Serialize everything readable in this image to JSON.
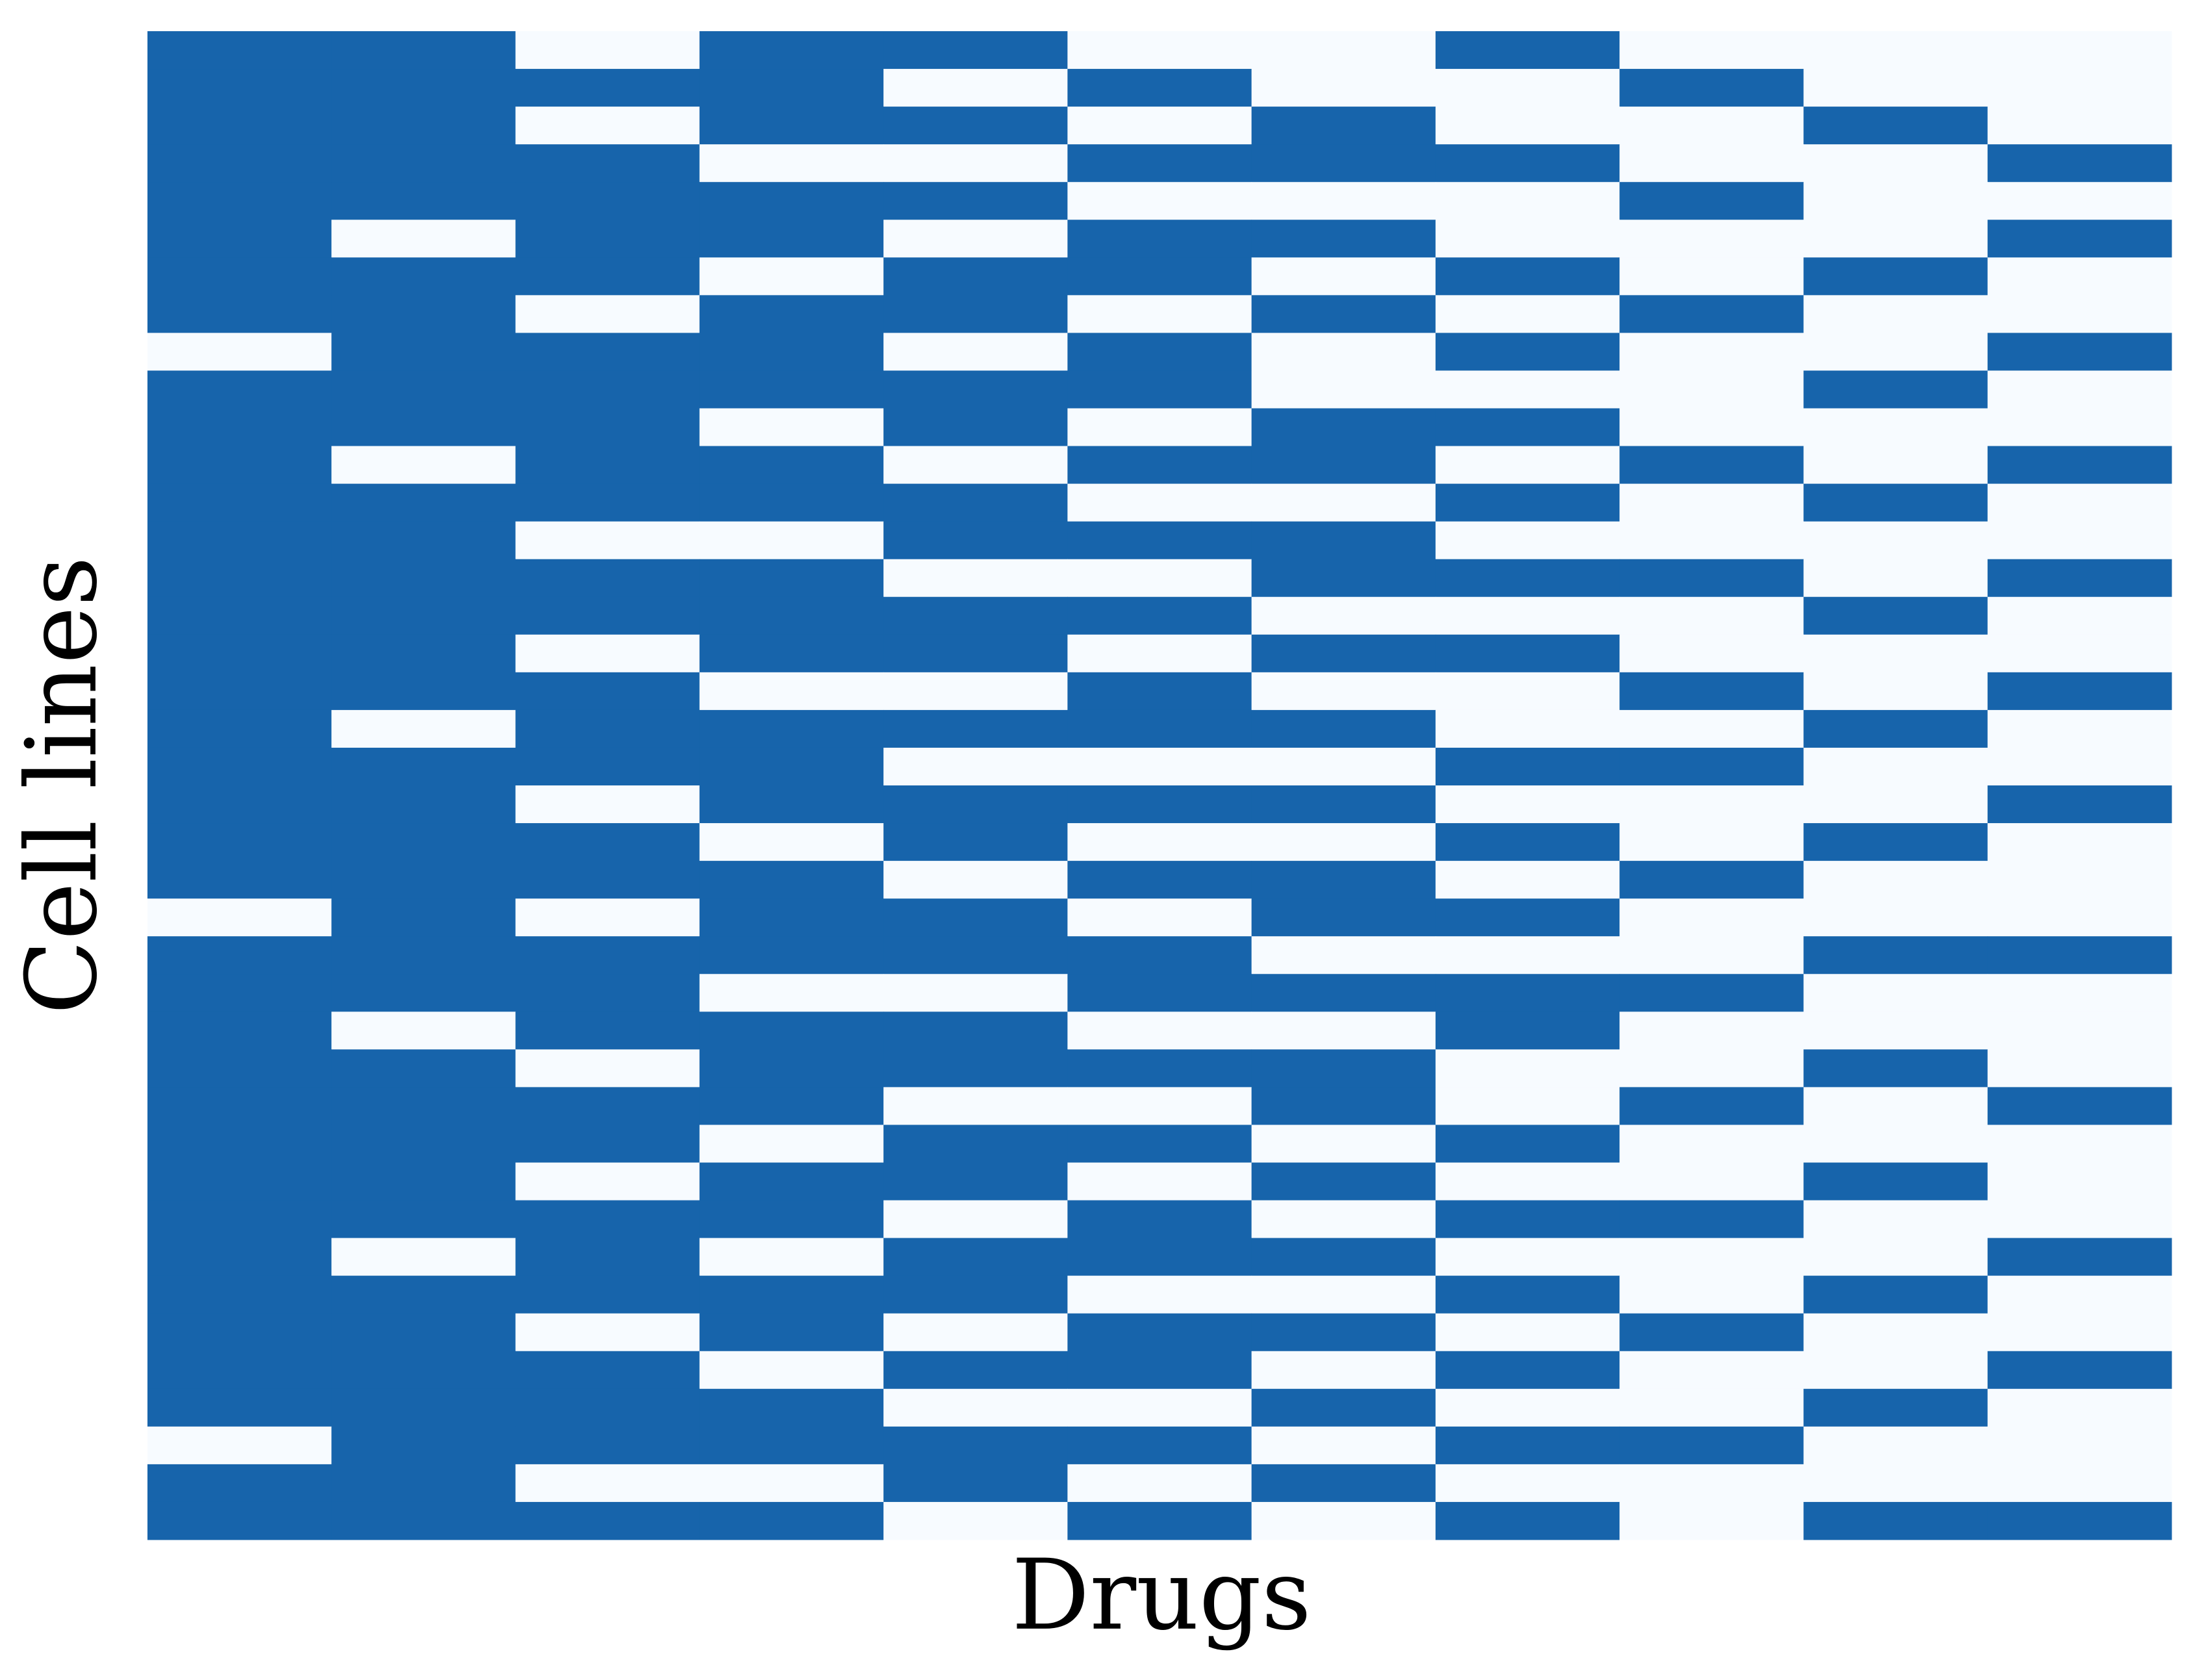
{
  "chart_data": {
    "type": "heatmap",
    "xlabel": "Drugs",
    "ylabel": "Cell lines",
    "colors": [
      "#f7fbff",
      "#1764ab"
    ],
    "vlim": [
      0,
      1
    ],
    "values": [
      [
        1,
        1,
        0,
        1,
        1,
        0,
        0,
        1,
        0,
        0,
        0
      ],
      [
        1,
        1,
        1,
        1,
        0,
        1,
        0,
        0,
        1,
        0,
        0
      ],
      [
        1,
        1,
        0,
        1,
        1,
        0,
        1,
        0,
        0,
        1,
        0
      ],
      [
        1,
        1,
        1,
        0,
        0,
        1,
        1,
        1,
        0,
        0,
        1
      ],
      [
        1,
        1,
        1,
        1,
        1,
        0,
        0,
        0,
        1,
        0,
        0
      ],
      [
        1,
        0,
        1,
        1,
        0,
        1,
        1,
        0,
        0,
        0,
        1
      ],
      [
        1,
        1,
        1,
        0,
        1,
        1,
        0,
        1,
        0,
        1,
        0
      ],
      [
        1,
        1,
        0,
        1,
        1,
        0,
        1,
        0,
        1,
        0,
        0
      ],
      [
        0,
        1,
        1,
        1,
        0,
        1,
        0,
        1,
        0,
        0,
        1
      ],
      [
        1,
        1,
        1,
        1,
        1,
        1,
        0,
        0,
        0,
        1,
        0
      ],
      [
        1,
        1,
        1,
        0,
        1,
        0,
        1,
        1,
        0,
        0,
        0
      ],
      [
        1,
        0,
        1,
        1,
        0,
        1,
        1,
        0,
        1,
        0,
        1
      ],
      [
        1,
        1,
        1,
        1,
        1,
        0,
        0,
        1,
        0,
        1,
        0
      ],
      [
        1,
        1,
        0,
        0,
        1,
        1,
        1,
        0,
        0,
        0,
        0
      ],
      [
        1,
        1,
        1,
        1,
        0,
        0,
        1,
        1,
        1,
        0,
        1
      ],
      [
        1,
        1,
        1,
        1,
        1,
        1,
        0,
        0,
        0,
        1,
        0
      ],
      [
        1,
        1,
        0,
        1,
        1,
        0,
        1,
        1,
        0,
        0,
        0
      ],
      [
        1,
        1,
        1,
        0,
        0,
        1,
        0,
        0,
        1,
        0,
        1
      ],
      [
        1,
        0,
        1,
        1,
        1,
        1,
        1,
        0,
        0,
        1,
        0
      ],
      [
        1,
        1,
        1,
        1,
        0,
        0,
        0,
        1,
        1,
        0,
        0
      ],
      [
        1,
        1,
        0,
        1,
        1,
        1,
        1,
        0,
        0,
        0,
        1
      ],
      [
        1,
        1,
        1,
        0,
        1,
        0,
        0,
        1,
        0,
        1,
        0
      ],
      [
        1,
        1,
        1,
        1,
        0,
        1,
        1,
        0,
        1,
        0,
        0
      ],
      [
        0,
        1,
        0,
        1,
        1,
        0,
        1,
        1,
        0,
        0,
        0
      ],
      [
        1,
        1,
        1,
        1,
        1,
        1,
        0,
        0,
        0,
        1,
        1
      ],
      [
        1,
        1,
        1,
        0,
        0,
        1,
        1,
        1,
        1,
        0,
        0
      ],
      [
        1,
        0,
        1,
        1,
        1,
        0,
        0,
        1,
        0,
        0,
        0
      ],
      [
        1,
        1,
        0,
        1,
        1,
        1,
        1,
        0,
        0,
        1,
        0
      ],
      [
        1,
        1,
        1,
        1,
        0,
        0,
        1,
        0,
        1,
        0,
        1
      ],
      [
        1,
        1,
        1,
        0,
        1,
        1,
        0,
        1,
        0,
        0,
        0
      ],
      [
        1,
        1,
        0,
        1,
        1,
        0,
        1,
        0,
        0,
        1,
        0
      ],
      [
        1,
        1,
        1,
        1,
        0,
        1,
        0,
        1,
        1,
        0,
        0
      ],
      [
        1,
        0,
        1,
        0,
        1,
        1,
        1,
        0,
        0,
        0,
        1
      ],
      [
        1,
        1,
        1,
        1,
        1,
        0,
        0,
        1,
        0,
        1,
        0
      ],
      [
        1,
        1,
        0,
        1,
        0,
        1,
        1,
        0,
        1,
        0,
        0
      ],
      [
        1,
        1,
        1,
        0,
        1,
        1,
        0,
        1,
        0,
        0,
        1
      ],
      [
        1,
        1,
        1,
        1,
        0,
        0,
        1,
        0,
        0,
        1,
        0
      ],
      [
        0,
        1,
        1,
        1,
        1,
        1,
        0,
        1,
        1,
        0,
        0
      ],
      [
        1,
        1,
        0,
        0,
        1,
        0,
        1,
        0,
        0,
        0,
        0
      ],
      [
        1,
        1,
        1,
        1,
        0,
        1,
        0,
        1,
        0,
        1,
        1
      ]
    ]
  }
}
